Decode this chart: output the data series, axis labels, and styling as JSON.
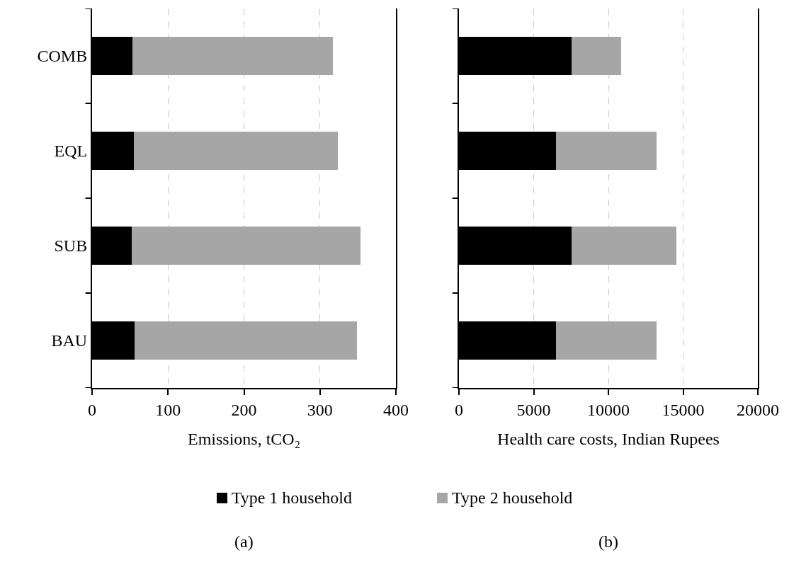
{
  "chart_data": [
    {
      "type": "bar",
      "orientation": "horizontal",
      "stacked": true,
      "categories": [
        "COMB",
        "EQL",
        "SUB",
        "BAU"
      ],
      "xlabel": "Emissions, tCO₂",
      "xlim": [
        0,
        400
      ],
      "xticks": [
        0,
        100,
        200,
        300,
        400
      ],
      "grid": "x",
      "legend": "bottom",
      "annotations": [
        "(a)"
      ],
      "series": [
        {
          "name": "Type 1 household",
          "color": "#000000",
          "values": [
            53,
            55,
            52,
            56
          ]
        },
        {
          "name": "Type 2 household",
          "color": "#a6a6a6",
          "values": [
            264,
            269,
            301,
            293
          ]
        }
      ]
    },
    {
      "type": "bar",
      "orientation": "horizontal",
      "stacked": true,
      "categories": [
        null,
        null,
        null,
        null
      ],
      "xlabel": "Health care costs, Indian Rupees",
      "xlim": [
        0,
        20000
      ],
      "xticks": [
        0,
        5000,
        10000,
        15000,
        20000
      ],
      "grid": "x",
      "tick_labels": "x",
      "annotations": [
        "(b)"
      ],
      "series": [
        {
          "color": "#000000",
          "values": [
            7550,
            6500,
            7550,
            6500
          ]
        },
        {
          "color": "#a6a6a6",
          "values": [
            3300,
            6700,
            7000,
            6700
          ]
        }
      ]
    }
  ]
}
